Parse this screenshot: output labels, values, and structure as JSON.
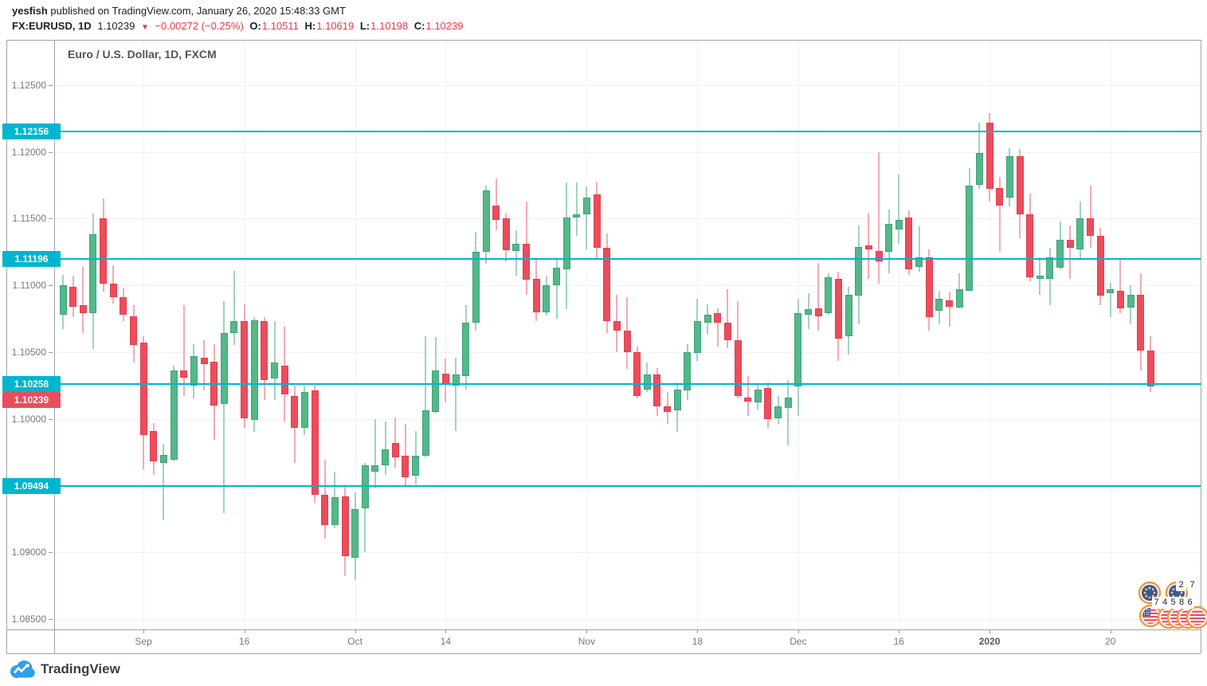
{
  "header": {
    "author": "yesfish",
    "published_text": " published on TradingView.com, January 26, 2020 15:48:33 GMT",
    "symbol_label": "FX:EURUSD, 1D",
    "last_price": "1.10239",
    "direction_icon": "▼",
    "change": "−0.00272 (−0.25%)",
    "ohlc": {
      "o_label": "O:",
      "o": "1.10511",
      "h_label": "H:",
      "h": "1.10619",
      "l_label": "L:",
      "l": "1.10198",
      "c_label": "C:",
      "c": "1.10239"
    }
  },
  "chart": {
    "title": "Euro / U.S. Dollar, 1D, FXCM"
  },
  "footer": {
    "logo_text": "TradingView"
  },
  "calendar_badges": {
    "top_counts": [
      "2",
      "7"
    ],
    "bottom_counts": [
      "7",
      "4",
      "5",
      "8",
      "6"
    ]
  },
  "chart_data": {
    "type": "candlestick",
    "title": "Euro / U.S. Dollar, 1D, FXCM",
    "symbol": "EURUSD",
    "timeframe": "1D",
    "exchange": "FXCM",
    "ylim": [
      1.0842,
      1.1284
    ],
    "grid": true,
    "price_axis": {
      "ticks": [
        {
          "label": "1.12500",
          "p": 1.125
        },
        {
          "label": "1.12000",
          "p": 1.12
        },
        {
          "label": "1.11500",
          "p": 1.115
        },
        {
          "label": "1.11000",
          "p": 1.11
        },
        {
          "label": "1.10500",
          "p": 1.105
        },
        {
          "label": "1.10000",
          "p": 1.1
        },
        {
          "label": "1.09500",
          "p": 1.095
        },
        {
          "label": "1.09000",
          "p": 1.09
        },
        {
          "label": "1.08500",
          "p": 1.085
        }
      ]
    },
    "time_axis": {
      "labels": [
        {
          "text": "Sep",
          "i": 8,
          "bold": false
        },
        {
          "text": "16",
          "i": 18,
          "bold": false
        },
        {
          "text": "Oct",
          "i": 29,
          "bold": false
        },
        {
          "text": "14",
          "i": 38,
          "bold": false
        },
        {
          "text": "Nov",
          "i": 52,
          "bold": false
        },
        {
          "text": "18",
          "i": 63,
          "bold": false
        },
        {
          "text": "Dec",
          "i": 73,
          "bold": false
        },
        {
          "text": "16",
          "i": 83,
          "bold": false
        },
        {
          "text": "2020",
          "i": 92,
          "bold": true
        },
        {
          "text": "20",
          "i": 104,
          "bold": false
        }
      ]
    },
    "alert_lines": [
      {
        "price": 1.12156,
        "label": "1.12156"
      },
      {
        "price": 1.11196,
        "label": "1.11196"
      },
      {
        "price": 1.10258,
        "label": "1.10258"
      },
      {
        "price": 1.09494,
        "label": "1.09494"
      }
    ],
    "last_price_badge": {
      "price": 1.10239,
      "label": "1.10239"
    },
    "colors": {
      "up_fill": "#53b987",
      "up_border": "#3fa07f",
      "up_wick": "#9fd4bd",
      "down_fill": "#eb4d5c",
      "down_border": "#e43e50",
      "down_wick": "#f5abb4",
      "alert": "#00b5ce",
      "last_badge": "#eb4d5c",
      "header_red": "#f23645",
      "eu_flag_blue": "#3b55a5",
      "flag_ring_orange": "#f0973c",
      "us_stripe_red": "#ea4e5b",
      "star_yellow": "#ffd337"
    },
    "candles": [
      [
        1.1078,
        1.1108,
        1.1067,
        1.11
      ],
      [
        1.1099,
        1.1107,
        1.1076,
        1.1084
      ],
      [
        1.1085,
        1.1114,
        1.1064,
        1.1079
      ],
      [
        1.1079,
        1.1154,
        1.1052,
        1.1138
      ],
      [
        1.115,
        1.1165,
        1.1095,
        1.1101
      ],
      [
        1.1101,
        1.1115,
        1.1086,
        1.1091
      ],
      [
        1.1091,
        1.1098,
        1.1073,
        1.1078
      ],
      [
        1.1077,
        1.1085,
        1.1042,
        1.1055
      ],
      [
        1.1057,
        1.1062,
        1.0962,
        1.0988
      ],
      [
        1.0991,
        1.0997,
        1.0958,
        1.0968
      ],
      [
        1.0967,
        1.0981,
        1.0924,
        1.0973
      ],
      [
        1.0969,
        1.104,
        1.0968,
        1.1036
      ],
      [
        1.1036,
        1.1085,
        1.1017,
        1.1031
      ],
      [
        1.1025,
        1.1056,
        1.1015,
        1.1047
      ],
      [
        1.1046,
        1.1059,
        1.1021,
        1.1041
      ],
      [
        1.1043,
        1.1056,
        1.0984,
        1.101
      ],
      [
        1.1011,
        1.1088,
        1.0929,
        1.1064
      ],
      [
        1.1064,
        1.1111,
        1.1055,
        1.1073
      ],
      [
        1.1073,
        1.1086,
        1.0993,
        1.1
      ],
      [
        1.0999,
        1.1076,
        1.099,
        1.1074
      ],
      [
        1.1073,
        1.1076,
        1.1014,
        1.1029
      ],
      [
        1.103,
        1.1073,
        1.1014,
        1.1042
      ],
      [
        1.104,
        1.1069,
        1.0998,
        1.1018
      ],
      [
        1.1017,
        1.1025,
        1.0967,
        1.0993
      ],
      [
        1.0993,
        1.1024,
        1.0988,
        1.102
      ],
      [
        1.1021,
        1.1025,
        1.0937,
        1.0943
      ],
      [
        1.0943,
        1.0969,
        1.091,
        1.092
      ],
      [
        1.092,
        1.096,
        1.0918,
        1.0941
      ],
      [
        1.0942,
        1.0949,
        1.0882,
        1.0897
      ],
      [
        1.0896,
        1.0945,
        1.0879,
        1.0932
      ],
      [
        1.0933,
        1.0967,
        1.09,
        1.0965
      ],
      [
        1.096,
        1.1,
        1.0948,
        1.0965
      ],
      [
        1.0965,
        1.0998,
        1.0958,
        1.0977
      ],
      [
        1.0982,
        1.1001,
        1.0963,
        1.0971
      ],
      [
        1.0972,
        1.0996,
        1.0949,
        1.0956
      ],
      [
        1.0957,
        1.0991,
        1.0951,
        1.0972
      ],
      [
        1.0972,
        1.1062,
        1.0971,
        1.1006
      ],
      [
        1.1005,
        1.1061,
        1.1004,
        1.1036
      ],
      [
        1.1034,
        1.1045,
        1.1012,
        1.1026
      ],
      [
        1.1025,
        1.1046,
        1.0991,
        1.1033
      ],
      [
        1.1032,
        1.1085,
        1.1022,
        1.1072
      ],
      [
        1.1072,
        1.114,
        1.1066,
        1.1125
      ],
      [
        1.1125,
        1.1175,
        1.1116,
        1.1171
      ],
      [
        1.116,
        1.118,
        1.1141,
        1.1149
      ],
      [
        1.115,
        1.1154,
        1.1118,
        1.1126
      ],
      [
        1.1126,
        1.1141,
        1.1107,
        1.1131
      ],
      [
        1.1131,
        1.1163,
        1.1093,
        1.1104
      ],
      [
        1.1105,
        1.112,
        1.1073,
        1.108
      ],
      [
        1.108,
        1.1107,
        1.1077,
        1.11
      ],
      [
        1.11,
        1.1119,
        1.1075,
        1.1113
      ],
      [
        1.1112,
        1.1177,
        1.1082,
        1.1151
      ],
      [
        1.1151,
        1.1177,
        1.1137,
        1.1153
      ],
      [
        1.1153,
        1.1174,
        1.1127,
        1.1166
      ],
      [
        1.1168,
        1.1177,
        1.112,
        1.1128
      ],
      [
        1.1128,
        1.1139,
        1.1064,
        1.1073
      ],
      [
        1.1073,
        1.1093,
        1.105,
        1.1066
      ],
      [
        1.1066,
        1.1091,
        1.1037,
        1.105
      ],
      [
        1.105,
        1.1054,
        1.1015,
        1.1017
      ],
      [
        1.1022,
        1.1042,
        1.102,
        1.1033
      ],
      [
        1.1033,
        1.1038,
        1.1002,
        1.1009
      ],
      [
        1.1009,
        1.102,
        1.0996,
        1.1005
      ],
      [
        1.1006,
        1.1027,
        1.099,
        1.1022
      ],
      [
        1.1021,
        1.1056,
        1.1014,
        1.105
      ],
      [
        1.1049,
        1.109,
        1.1043,
        1.1073
      ],
      [
        1.1072,
        1.1086,
        1.1063,
        1.1078
      ],
      [
        1.1079,
        1.1083,
        1.1054,
        1.1072
      ],
      [
        1.1072,
        1.1097,
        1.1053,
        1.1059
      ],
      [
        1.1059,
        1.1088,
        1.1015,
        1.1017
      ],
      [
        1.1016,
        1.1032,
        1.1002,
        1.1013
      ],
      [
        1.1012,
        1.1026,
        1.1007,
        1.1022
      ],
      [
        1.1023,
        1.1027,
        1.0993,
        1.1
      ],
      [
        1.1,
        1.1017,
        1.0996,
        1.1009
      ],
      [
        1.1008,
        1.1029,
        1.098,
        1.1016
      ],
      [
        1.1024,
        1.109,
        1.1002,
        1.1079
      ],
      [
        1.1078,
        1.1094,
        1.1067,
        1.1082
      ],
      [
        1.1083,
        1.1117,
        1.1066,
        1.1077
      ],
      [
        1.1079,
        1.1109,
        1.1078,
        1.1106
      ],
      [
        1.1105,
        1.111,
        1.1043,
        1.106
      ],
      [
        1.1062,
        1.1099,
        1.1048,
        1.1093
      ],
      [
        1.1092,
        1.1145,
        1.1071,
        1.1129
      ],
      [
        1.113,
        1.1154,
        1.1105,
        1.1127
      ],
      [
        1.1126,
        1.12,
        1.1101,
        1.1118
      ],
      [
        1.1125,
        1.1157,
        1.1109,
        1.1146
      ],
      [
        1.1142,
        1.1183,
        1.1131,
        1.1149
      ],
      [
        1.1151,
        1.1156,
        1.1108,
        1.1112
      ],
      [
        1.1114,
        1.1144,
        1.111,
        1.1121
      ],
      [
        1.1121,
        1.1127,
        1.1066,
        1.1076
      ],
      [
        1.1081,
        1.1096,
        1.1071,
        1.109
      ],
      [
        1.1089,
        1.1095,
        1.1069,
        1.1084
      ],
      [
        1.1083,
        1.1109,
        1.1083,
        1.1097
      ],
      [
        1.1096,
        1.1188,
        1.1096,
        1.1175
      ],
      [
        1.1175,
        1.1222,
        1.1172,
        1.1199
      ],
      [
        1.1222,
        1.1229,
        1.1163,
        1.1172
      ],
      [
        1.1173,
        1.1181,
        1.1125,
        1.116
      ],
      [
        1.1166,
        1.1203,
        1.1159,
        1.1197
      ],
      [
        1.1197,
        1.1202,
        1.1135,
        1.1153
      ],
      [
        1.1153,
        1.1169,
        1.1103,
        1.1106
      ],
      [
        1.1105,
        1.1121,
        1.1093,
        1.1107
      ],
      [
        1.1105,
        1.1128,
        1.1085,
        1.1121
      ],
      [
        1.1113,
        1.1148,
        1.1112,
        1.1134
      ],
      [
        1.1134,
        1.1145,
        1.1105,
        1.1128
      ],
      [
        1.1127,
        1.1163,
        1.1119,
        1.115
      ],
      [
        1.115,
        1.1175,
        1.1128,
        1.1137
      ],
      [
        1.1137,
        1.1143,
        1.1085,
        1.1092
      ],
      [
        1.1094,
        1.1102,
        1.1076,
        1.1097
      ],
      [
        1.1096,
        1.1119,
        1.1079,
        1.1083
      ],
      [
        1.1083,
        1.11,
        1.1071,
        1.1093
      ],
      [
        1.1093,
        1.1109,
        1.1036,
        1.1051
      ],
      [
        1.10511,
        1.10619,
        1.10198,
        1.10239
      ]
    ]
  }
}
